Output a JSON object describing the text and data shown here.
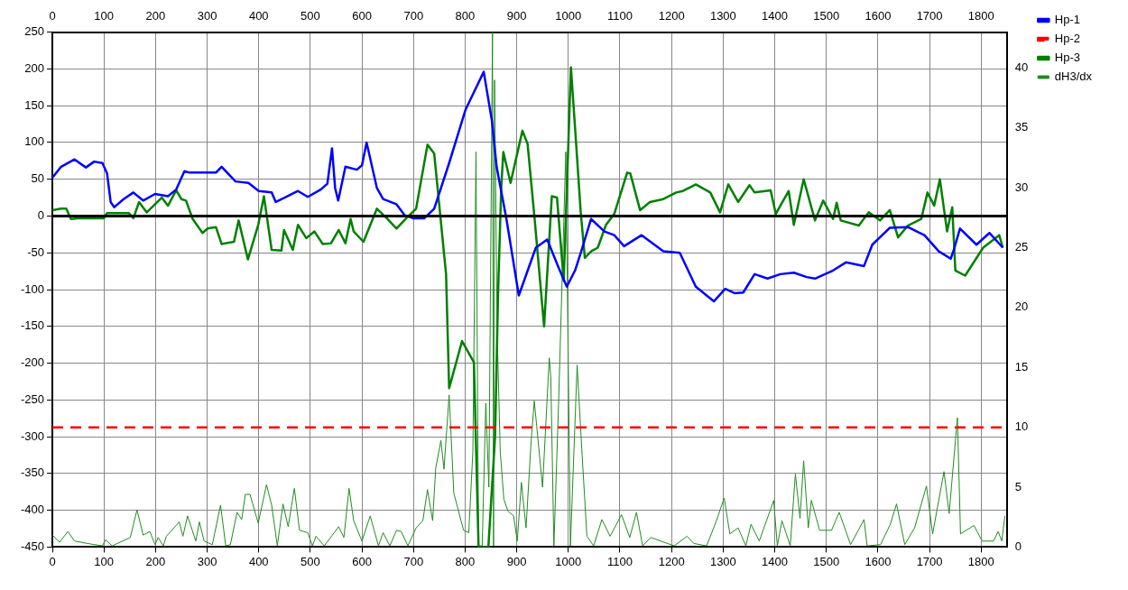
{
  "chart_data": {
    "type": "line",
    "xlim": [
      0,
      1850
    ],
    "xticks": [
      0,
      100,
      200,
      300,
      400,
      500,
      600,
      700,
      800,
      900,
      1000,
      1100,
      1200,
      1300,
      1400,
      1500,
      1600,
      1700,
      1800
    ],
    "x2lim": [
      0,
      1850
    ],
    "x2ticks": [
      0,
      100,
      200,
      300,
      400,
      500,
      600,
      700,
      800,
      900,
      1000,
      1100,
      1200,
      1300,
      1400,
      1500,
      1600,
      1700,
      1800
    ],
    "ylim": [
      -450,
      250
    ],
    "yticks": [
      -450,
      -400,
      -350,
      -300,
      -250,
      -200,
      -150,
      -100,
      -50,
      0,
      50,
      100,
      150,
      200,
      250
    ],
    "y2lim": [
      0,
      43
    ],
    "y2ticks": [
      0,
      5,
      10,
      15,
      20,
      25,
      30,
      35,
      40
    ],
    "grid": true,
    "legend": "top right",
    "marker": "none",
    "ref_lines": [
      {
        "axis": "y",
        "value": 0,
        "color": "#000000"
      }
    ],
    "series": [
      {
        "name": "Hp-1",
        "color": "#0000ff",
        "x": [
          0,
          17,
          43,
          65,
          81,
          97,
          106,
          113,
          120,
          138,
          157,
          176,
          199,
          224,
          240,
          256,
          266,
          317,
          328,
          355,
          380,
          400,
          425,
          433,
          450,
          476,
          495,
          520,
          533,
          542,
          548,
          554,
          568,
          590,
          600,
          609,
          629,
          641,
          667,
          683,
          699,
          721,
          740,
          769,
          801,
          836,
          852,
          861,
          880,
          904,
          937,
          959,
          981,
          997,
          1013,
          1025,
          1044,
          1070,
          1089,
          1108,
          1142,
          1184,
          1216,
          1247,
          1282,
          1304,
          1323,
          1339,
          1361,
          1386,
          1411,
          1437,
          1462,
          1478,
          1513,
          1538,
          1573,
          1589,
          1623,
          1658,
          1690,
          1718,
          1741,
          1747,
          1759,
          1791,
          1816,
          1842
        ],
        "values": [
          52,
          67,
          77,
          66,
          74,
          72,
          58,
          19,
          12,
          23,
          32,
          21,
          30,
          27,
          36,
          61,
          59,
          59,
          67,
          47,
          45,
          34,
          32,
          19,
          25,
          34,
          26,
          36,
          44,
          92,
          38,
          21,
          67,
          63,
          69,
          100,
          38,
          23,
          16,
          1,
          -3,
          -3,
          10,
          72,
          145,
          196,
          129,
          67,
          -4,
          -108,
          -43,
          -32,
          -70,
          -96,
          -74,
          -48,
          -4,
          -21,
          -26,
          -41,
          -26,
          -48,
          -50,
          -96,
          -116,
          -99,
          -105,
          -104,
          -79,
          -85,
          -79,
          -77,
          -83,
          -85,
          -74,
          -63,
          -68,
          -39,
          -16,
          -15,
          -26,
          -48,
          -58,
          -46,
          -17,
          -39,
          -23,
          -43
        ]
      },
      {
        "name": "Hp-2",
        "color": "#ff0000",
        "axis": "y2",
        "line_style": "dashed",
        "x": [
          0,
          1850
        ],
        "values": [
          10,
          10
        ]
      },
      {
        "name": "Hp-3",
        "color": "#008000",
        "x": [
          0,
          17,
          27,
          36,
          49,
          75,
          100,
          106,
          148,
          157,
          168,
          183,
          199,
          212,
          224,
          240,
          250,
          259,
          272,
          291,
          301,
          317,
          328,
          352,
          361,
          379,
          399,
          410,
          425,
          444,
          449,
          466,
          476,
          492,
          508,
          524,
          540,
          555,
          568,
          578,
          584,
          603,
          629,
          648,
          667,
          686,
          705,
          727,
          740,
          763,
          769,
          794,
          817,
          826,
          845,
          858,
          864,
          870,
          874,
          888,
          911,
          921,
          934,
          953,
          968,
          978,
          991,
          1005,
          1013,
          1024,
          1032,
          1044,
          1057,
          1073,
          1089,
          1114,
          1120,
          1139,
          1158,
          1184,
          1209,
          1222,
          1247,
          1275,
          1294,
          1310,
          1329,
          1351,
          1361,
          1392,
          1402,
          1427,
          1437,
          1456,
          1478,
          1494,
          1513,
          1520,
          1528,
          1563,
          1582,
          1604,
          1623,
          1639,
          1658,
          1684,
          1696,
          1709,
          1720,
          1734,
          1744,
          1750,
          1769,
          1804,
          1835,
          1842
        ],
        "values": [
          8,
          10,
          10,
          -4,
          -3,
          -3,
          -3,
          4,
          4,
          -3,
          19,
          5,
          16,
          25,
          14,
          35,
          23,
          21,
          -4,
          -23,
          -17,
          -15,
          -38,
          -35,
          -6,
          -59,
          -12,
          27,
          -46,
          -47,
          -19,
          -46,
          -12,
          -30,
          -21,
          -38,
          -37,
          -19,
          -37,
          -4,
          -21,
          -35,
          10,
          -3,
          -17,
          -3,
          10,
          97,
          85,
          -79,
          -234,
          -170,
          -199,
          -450,
          -450,
          -300,
          -100,
          40,
          87,
          45,
          116,
          98,
          1,
          -150,
          27,
          25,
          -88,
          202,
          120,
          5,
          -57,
          -48,
          -43,
          -12,
          3,
          59,
          58,
          8,
          19,
          23,
          32,
          34,
          43,
          32,
          5,
          43,
          19,
          42,
          32,
          35,
          3,
          34,
          -12,
          50,
          -6,
          21,
          -4,
          18,
          -6,
          -13,
          5,
          -6,
          8,
          -29,
          -13,
          -4,
          32,
          14,
          50,
          -21,
          12,
          -74,
          -81,
          -43,
          -26,
          -43
        ]
      },
      {
        "name": "dH3/dx",
        "color": "#228b22",
        "axis": "y2",
        "x": [
          0,
          14,
          30,
          43,
          68,
          97,
          103,
          116,
          151,
          164,
          176,
          189,
          199,
          205,
          215,
          221,
          246,
          253,
          262,
          278,
          285,
          294,
          310,
          326,
          336,
          345,
          358,
          367,
          374,
          383,
          399,
          415,
          425,
          436,
          447,
          457,
          469,
          479,
          495,
          504,
          511,
          527,
          555,
          565,
          575,
          584,
          600,
          616,
          632,
          641,
          654,
          667,
          676,
          689,
          705,
          718,
          727,
          737,
          743,
          753,
          759,
          769,
          778,
          797,
          807,
          815,
          821,
          826,
          833,
          840,
          846,
          853,
          855,
          857,
          862,
          868,
          875,
          883,
          894,
          901,
          909,
          918,
          928,
          934,
          950,
          963,
          966,
          972,
          981,
          995,
          1004,
          1017,
          1026,
          1036,
          1049,
          1065,
          1081,
          1103,
          1119,
          1132,
          1144,
          1160,
          1179,
          1205,
          1230,
          1243,
          1268,
          1287,
          1302,
          1313,
          1329,
          1344,
          1354,
          1370,
          1398,
          1405,
          1414,
          1430,
          1440,
          1449,
          1456,
          1465,
          1471,
          1487,
          1510,
          1525,
          1547,
          1573,
          1579,
          1605,
          1624,
          1636,
          1652,
          1671,
          1694,
          1706,
          1728,
          1738,
          1754,
          1760,
          1786,
          1802,
          1824,
          1833,
          1840,
          1846
        ],
        "values": [
          1.0,
          0.4,
          1.3,
          0.5,
          0.3,
          0.1,
          0.6,
          0.1,
          0.8,
          3.1,
          1.0,
          1.3,
          0.2,
          0.8,
          0.1,
          0.9,
          2.1,
          0.9,
          2.6,
          0.5,
          2.1,
          0.5,
          0.2,
          3.5,
          0.1,
          0.2,
          2.9,
          2.3,
          4.4,
          4.4,
          2.0,
          5.2,
          3.5,
          0.1,
          3.6,
          1.7,
          4.9,
          1.4,
          1.2,
          0.1,
          0.9,
          0.1,
          1.7,
          0.8,
          4.9,
          2.2,
          0.5,
          2.6,
          0.1,
          1.2,
          0.1,
          1.4,
          1.3,
          0.1,
          1.6,
          2.2,
          4.8,
          2.2,
          6.6,
          8.9,
          6.5,
          12.7,
          4.5,
          1.4,
          1.2,
          8,
          33,
          0.1,
          0.1,
          12,
          5,
          43,
          0.1,
          39,
          18,
          8,
          4,
          3,
          2.6,
          0.5,
          5.4,
          1.6,
          8.9,
          12.2,
          5.0,
          15.8,
          14.2,
          0.1,
          11.9,
          33,
          0.1,
          15.2,
          8.2,
          0.9,
          0.1,
          2.3,
          0.9,
          2.7,
          0.8,
          2.9,
          0.1,
          0.8,
          0.5,
          0.1,
          0.9,
          0.3,
          0.1,
          2.2,
          4.1,
          1.1,
          1.6,
          0.1,
          1.9,
          0.5,
          3.9,
          0.1,
          2.2,
          0.1,
          6.1,
          2.4,
          7.2,
          1.6,
          3.9,
          1.4,
          1.4,
          2.9,
          0.2,
          2.3,
          0.1,
          0.2,
          1.9,
          3.6,
          0.2,
          1.6,
          5.1,
          1.1,
          6.3,
          2.8,
          10.8,
          1.1,
          1.8,
          0.5,
          0.5,
          1.3,
          0.5,
          2.6
        ]
      }
    ]
  }
}
